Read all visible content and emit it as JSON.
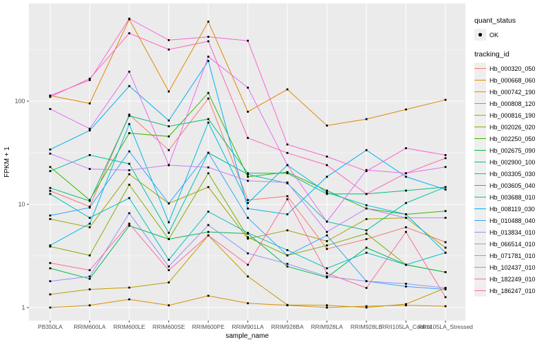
{
  "figure": {
    "background": "#ffffff",
    "panel_background": "#ebebeb",
    "grid_color": "#ffffff",
    "axis_text_color": "#4d4d4d",
    "axis_title_color": "#000000",
    "tick_color": "#333333",
    "point_color": "#000000"
  },
  "chart_data": {
    "type": "line",
    "title": "",
    "xlabel": "sample_name",
    "ylabel": "FPKM + 1",
    "y_scale": "log10",
    "y_ticks": [
      1,
      10,
      100
    ],
    "y_tick_labels": [
      "1",
      "10",
      "100"
    ],
    "y_minor_ticks": [
      3.1623,
      31.623,
      316.23
    ],
    "ylim_log": [
      0.93,
      880
    ],
    "grid": true,
    "legend_position": "right",
    "categories": [
      "PB350LA",
      "RRIM600LA",
      "RRIM600LE",
      "RRIM600SE",
      "RRIM600PE",
      "RRIM901LA",
      "RRIM928BA",
      "RRIM928LA",
      "RRIM928LE",
      "RRII105LA_Control",
      "RRII105LA_Stressed"
    ],
    "legend": {
      "quant_status": {
        "title": "quant_status",
        "items": [
          {
            "label": "OK",
            "glyph": "point",
            "color": "#000000"
          }
        ]
      },
      "tracking_id": {
        "title": "tracking_id",
        "items": [
          {
            "label": "Hb_000320_050",
            "color": "#F8766D"
          },
          {
            "label": "Hb_000668_060",
            "color": "#E58700"
          },
          {
            "label": "Hb_000742_190",
            "color": "#D89000"
          },
          {
            "label": "Hb_000808_120",
            "color": "#C09B00"
          },
          {
            "label": "Hb_000816_190",
            "color": "#A3A500"
          },
          {
            "label": "Hb_002026_020",
            "color": "#7CAE00"
          },
          {
            "label": "Hb_002250_050",
            "color": "#39B600"
          },
          {
            "label": "Hb_002675_090",
            "color": "#00BB4E"
          },
          {
            "label": "Hb_002900_100",
            "color": "#00BF7D"
          },
          {
            "label": "Hb_003305_030",
            "color": "#00C1A3"
          },
          {
            "label": "Hb_003605_040",
            "color": "#00BFC4"
          },
          {
            "label": "Hb_003688_010",
            "color": "#00BAE0"
          },
          {
            "label": "Hb_008119_030",
            "color": "#00B0F6"
          },
          {
            "label": "Hb_010488_040",
            "color": "#35A2FF"
          },
          {
            "label": "Hb_013834_010",
            "color": "#9590FF"
          },
          {
            "label": "Hb_066514_010",
            "color": "#C77CFF"
          },
          {
            "label": "Hb_071781_010",
            "color": "#E76BF3"
          },
          {
            "label": "Hb_102437_010",
            "color": "#FA62DB"
          },
          {
            "label": "Hb_182249_010",
            "color": "#FF62BC"
          },
          {
            "label": "Hb_186247_010",
            "color": "#FF6A98"
          }
        ]
      }
    },
    "series": [
      {
        "name": "Hb_000320_050",
        "color": "#F8766D",
        "values": [
          13.5,
          9.5,
          74,
          33.5,
          106,
          11,
          12,
          3.7,
          4.6,
          6.0,
          4.3
        ]
      },
      {
        "name": "Hb_000668_060",
        "color": "#E58700",
        "values": [
          113,
          95,
          620,
          124,
          590,
          79,
          130,
          58,
          67,
          83,
          103
        ]
      },
      {
        "name": "Hb_000742_190",
        "color": "#D89000",
        "values": [
          1.0,
          1.05,
          1.2,
          1.05,
          1.3,
          1.1,
          1.05,
          1.0,
          1.03,
          1.05,
          1.03
        ]
      },
      {
        "name": "Hb_000808_120",
        "color": "#C09B00",
        "values": [
          1.34,
          1.5,
          1.56,
          1.75,
          5.0,
          2.0,
          1.06,
          1.05,
          1.0,
          1.08,
          1.55
        ]
      },
      {
        "name": "Hb_000816_190",
        "color": "#A3A500",
        "values": [
          7.2,
          6.0,
          19.6,
          10.2,
          14.7,
          4.65,
          5.6,
          4.4,
          7.2,
          7.4,
          3.8
        ]
      },
      {
        "name": "Hb_002026_020",
        "color": "#7CAE00",
        "values": [
          3.9,
          3.2,
          15.5,
          4.6,
          20,
          4.8,
          3.2,
          4.0,
          5.2,
          2.6,
          2.2
        ]
      },
      {
        "name": "Hb_002250_050",
        "color": "#39B600",
        "values": [
          23,
          11,
          49,
          45.5,
          120,
          18.5,
          20.5,
          13.6,
          9.1,
          8.0,
          8.6
        ]
      },
      {
        "name": "Hb_002675_090",
        "color": "#00BB4E",
        "values": [
          2.4,
          1.9,
          6.2,
          4.6,
          5.4,
          5.2,
          2.5,
          1.96,
          3.8,
          2.6,
          2.2
        ]
      },
      {
        "name": "Hb_002900_100",
        "color": "#00BF7D",
        "values": [
          14.4,
          10.8,
          72,
          57,
          67,
          20,
          20,
          12.6,
          12.6,
          13.6,
          14.7
        ]
      },
      {
        "name": "Hb_003305_030",
        "color": "#00C1A3",
        "values": [
          21,
          30,
          24.7,
          5.3,
          31.6,
          19.5,
          16,
          6.8,
          5.6,
          10.3,
          14.7
        ]
      },
      {
        "name": "Hb_003605_040",
        "color": "#00BFC4",
        "values": [
          12.6,
          7.4,
          11.5,
          2.9,
          8.5,
          5.3,
          3.6,
          2.4,
          3.4,
          2.6,
          3.4
        ]
      },
      {
        "name": "Hb_003688_010",
        "color": "#00BAE0",
        "values": [
          4.0,
          6.5,
          60,
          6.7,
          62,
          10.3,
          24,
          13.0,
          9.8,
          8.0,
          3.4
        ]
      },
      {
        "name": "Hb_008119_030",
        "color": "#00B0F6",
        "values": [
          34,
          52,
          140,
          65,
          245,
          9.1,
          8.0,
          18.5,
          33.5,
          18.5,
          13.9
        ]
      },
      {
        "name": "Hb_010488_040",
        "color": "#35A2FF",
        "values": [
          7.8,
          9.3,
          32.6,
          10.2,
          31.6,
          7.4,
          3.2,
          5.0,
          1.8,
          1.6,
          1.5
        ]
      },
      {
        "name": "Hb_013834_010",
        "color": "#9590FF",
        "values": [
          1.8,
          2.0,
          8.2,
          2.5,
          6.3,
          3.35,
          2.65,
          2.0,
          1.8,
          1.7,
          1.55
        ]
      },
      {
        "name": "Hb_066514_010",
        "color": "#C77CFF",
        "values": [
          31,
          22,
          21.4,
          24,
          22.8,
          16.9,
          16.3,
          5.4,
          9.1,
          7.4,
          7.4
        ]
      },
      {
        "name": "Hb_071781_010",
        "color": "#E76BF3",
        "values": [
          84,
          54,
          193,
          24,
          270,
          135,
          24,
          6.8,
          21.5,
          20,
          23
        ]
      },
      {
        "name": "Hb_102437_010",
        "color": "#FA62DB",
        "values": [
          113,
          160,
          630,
          390,
          420,
          385,
          38,
          29,
          21,
          35,
          30
        ]
      },
      {
        "name": "Hb_182249_010",
        "color": "#FF62BC",
        "values": [
          110,
          165,
          455,
          316,
          380,
          44,
          31.5,
          24,
          12.6,
          20,
          28
        ]
      },
      {
        "name": "Hb_186247_010",
        "color": "#FF6A98",
        "values": [
          2.7,
          2.3,
          6.5,
          2.3,
          5.0,
          2.6,
          11.2,
          2.15,
          1.55,
          5.4,
          1.26
        ]
      }
    ]
  }
}
